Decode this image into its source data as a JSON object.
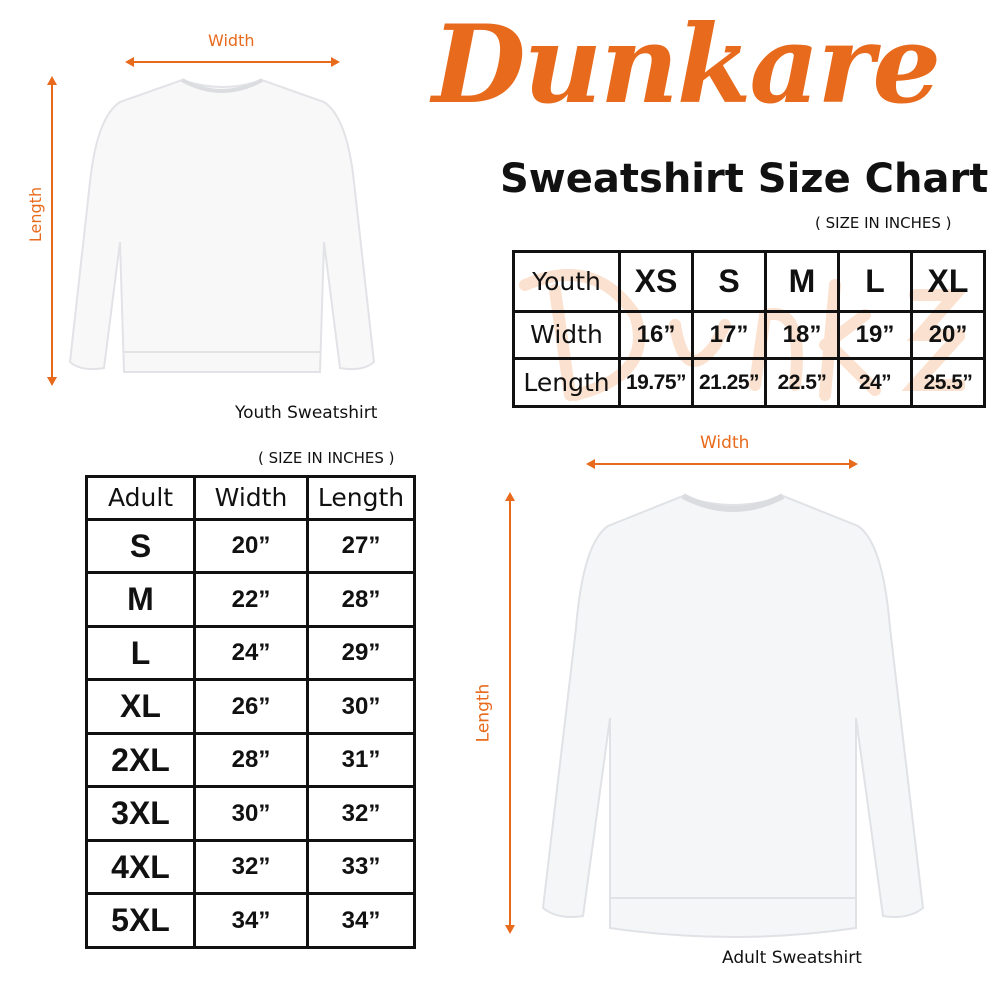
{
  "brand": {
    "logo_text": "Dunkare",
    "color": "#e86a1c"
  },
  "title": "Sweatshirt Size Chart",
  "youth": {
    "caption": "Youth Sweatshirt",
    "width_label": "Width",
    "length_label": "Length",
    "units_note": "( SIZE IN INCHES )",
    "table": {
      "header": [
        "Youth",
        "XS",
        "S",
        "M",
        "L",
        "XL"
      ],
      "rows": [
        [
          "Width",
          "16”",
          "17”",
          "18”",
          "19”",
          "20”"
        ],
        [
          "Length",
          "19.75”",
          "21.25”",
          "22.5”",
          "24”",
          "25.5”"
        ]
      ]
    }
  },
  "adult": {
    "caption": "Adult Sweatshirt",
    "width_label": "Width",
    "length_label": "Length",
    "units_note": "( SIZE IN INCHES )",
    "table": {
      "header": [
        "Adult",
        "Width",
        "Length"
      ],
      "rows": [
        [
          "S",
          "20”",
          "27”"
        ],
        [
          "M",
          "22”",
          "28”"
        ],
        [
          "L",
          "24”",
          "29”"
        ],
        [
          "XL",
          "26”",
          "30”"
        ],
        [
          "2XL",
          "28”",
          "31”"
        ],
        [
          "3XL",
          "30”",
          "32”"
        ],
        [
          "4XL",
          "32”",
          "33”"
        ],
        [
          "5XL",
          "34”",
          "34”"
        ]
      ]
    }
  }
}
